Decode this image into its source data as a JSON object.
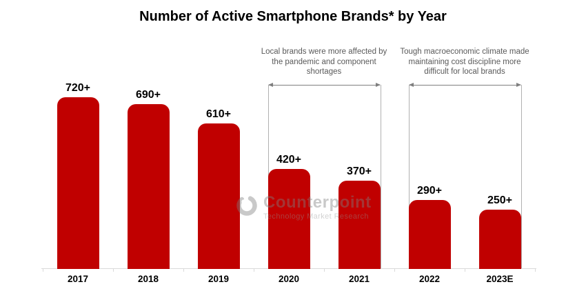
{
  "title": "Number of Active Smartphone Brands* by Year",
  "watermark": {
    "name": "Counterpoint",
    "tagline": "Technology Market Research"
  },
  "colors": {
    "bar": "#c00000",
    "annotation_text": "#595959",
    "arrow": "#7f7f7f",
    "axis": "#d9d9d9",
    "watermark_gray": "#7f7f7f"
  },
  "chart_data": {
    "type": "bar",
    "title": "Number of Active Smartphone Brands* by Year",
    "categories": [
      "2017",
      "2018",
      "2019",
      "2020",
      "2021",
      "2022",
      "2023E"
    ],
    "values": [
      720,
      690,
      610,
      420,
      370,
      290,
      250
    ],
    "value_labels": [
      "720+",
      "690+",
      "610+",
      "420+",
      "370+",
      "290+",
      "250+"
    ],
    "xlabel": "",
    "ylabel": "",
    "ylim": [
      0,
      780
    ],
    "grid": false,
    "legend": "none",
    "bar_color": "#c00000",
    "annotations": [
      {
        "text": "Local brands were more affected by the pandemic and component shortages",
        "from": "2020",
        "to": "2021"
      },
      {
        "text": "Tough macroeconomic climate made maintaining cost discipline more difficult for local brands",
        "from": "2022",
        "to": "2023E"
      }
    ]
  }
}
